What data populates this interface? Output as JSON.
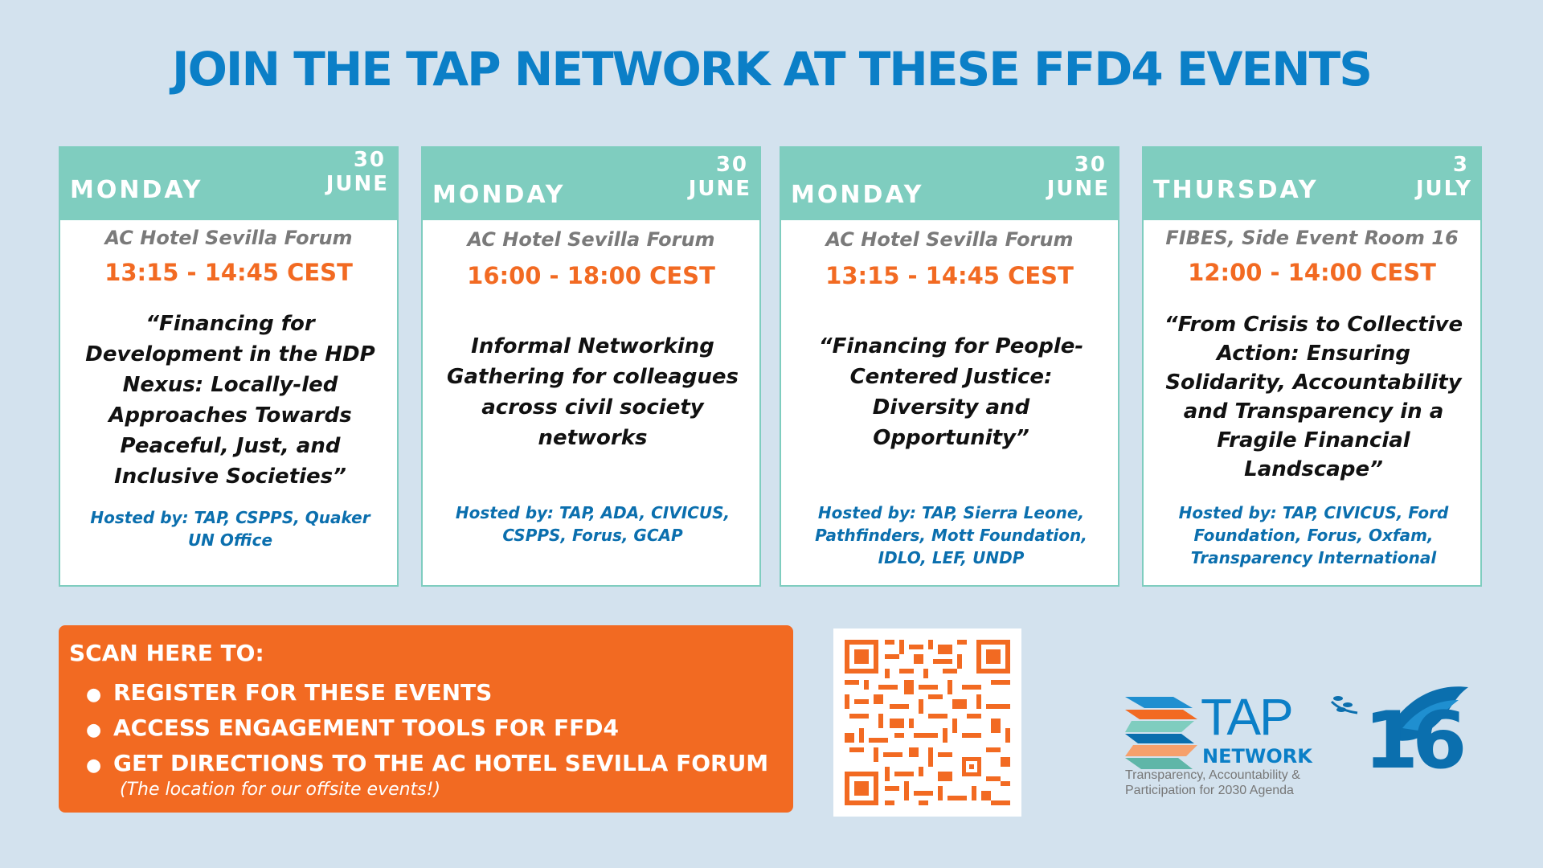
{
  "title": "JOIN THE TAP NETWORK AT THESE FFD4 EVENTS",
  "events": [
    {
      "day": "MONDAY",
      "date_num": "30",
      "date_month": "JUNE",
      "venue": "AC Hotel Sevilla Forum",
      "time": "13:15 - 14:45 CEST",
      "event": "“Financing for Development in the HDP Nexus: Locally-led Approaches Towards Peaceful, Just, and Inclusive Societies”",
      "hosted": "Hosted by: TAP, CSPPS, Quaker UN Office"
    },
    {
      "day": "MONDAY",
      "date_num": "30",
      "date_month": "JUNE",
      "venue": "AC Hotel Sevilla Forum",
      "time": "16:00 - 18:00 CEST",
      "event": "Informal Networking Gathering for colleagues across civil society networks",
      "hosted": "Hosted by: TAP, ADA, CIVICUS, CSPPS, Forus, GCAP"
    },
    {
      "day": "MONDAY",
      "date_num": "30",
      "date_month": "JUNE",
      "venue": "AC Hotel Sevilla Forum",
      "time": "13:15 - 14:45 CEST",
      "event": "“Financing for People-Centered Justice: Diversity and Opportunity”",
      "hosted": "Hosted by: TAP, Sierra Leone, Pathfinders, Mott Foundation, IDLO, LEF, UNDP"
    },
    {
      "day": "THURSDAY",
      "date_num": "3",
      "date_month": "JULY",
      "venue": "FIBES, Side Event Room 16",
      "time": "12:00 - 14:00 CEST",
      "event": "“From Crisis to Collective Action: Ensuring Solidarity, Accountability and Transparency in a Fragile Financial Landscape”",
      "hosted": "Hosted by: TAP, CIVICUS, Ford Foundation, Forus, Oxfam, Transparency International"
    }
  ],
  "scan": {
    "heading": "SCAN HERE TO:",
    "items": [
      "REGISTER FOR THESE EVENTS",
      "ACCESS ENGAGEMENT TOOLS FOR FFD4",
      "GET DIRECTIONS TO THE AC HOTEL SEVILLA FORUM"
    ],
    "note": "(The location for our offsite events!)"
  },
  "logo": {
    "tap": "TAP",
    "network": "NETWORK",
    "tagline_1": "Transparency, Accountability &",
    "tagline_2": "Participation for 2030 Agenda",
    "anniversary": "16"
  },
  "colors": {
    "background": "#d3e2ee",
    "title_blue": "#0b7fc7",
    "header_teal": "#7fcdbf",
    "orange": "#f26a22",
    "hosted_blue": "#0b6fae"
  }
}
